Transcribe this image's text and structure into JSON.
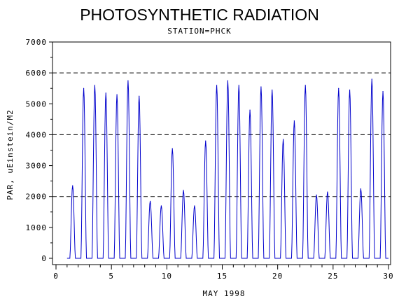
{
  "chart_data": {
    "type": "line",
    "title": "PHOTOSYNTHETIC RADIATION",
    "subtitle": "STATION=PHCK",
    "xlabel": "MAY 1998",
    "ylabel": "PAR, uEinstein/M2",
    "xlim": [
      0,
      30
    ],
    "ylim": [
      0,
      7000
    ],
    "x_ticks": [
      0,
      5,
      10,
      15,
      20,
      25,
      30
    ],
    "y_ticks": [
      0,
      1000,
      2000,
      3000,
      4000,
      5000,
      6000,
      7000
    ],
    "reference_lines": [
      2000,
      4000,
      6000
    ],
    "line_color": "#0000cc",
    "daily_peaks": [
      {
        "day": 1.5,
        "peak": 2350
      },
      {
        "day": 2.5,
        "peak": 5500
      },
      {
        "day": 3.5,
        "peak": 5600
      },
      {
        "day": 4.5,
        "peak": 5350
      },
      {
        "day": 5.5,
        "peak": 5300
      },
      {
        "day": 6.5,
        "peak": 5750
      },
      {
        "day": 7.5,
        "peak": 5250
      },
      {
        "day": 8.5,
        "peak": 1850
      },
      {
        "day": 9.5,
        "peak": 1700
      },
      {
        "day": 10.5,
        "peak": 3550
      },
      {
        "day": 11.5,
        "peak": 2200
      },
      {
        "day": 12.5,
        "peak": 1700
      },
      {
        "day": 13.5,
        "peak": 3800
      },
      {
        "day": 14.5,
        "peak": 5600
      },
      {
        "day": 15.5,
        "peak": 5750
      },
      {
        "day": 16.5,
        "peak": 5600
      },
      {
        "day": 17.5,
        "peak": 4800
      },
      {
        "day": 18.5,
        "peak": 5550
      },
      {
        "day": 19.5,
        "peak": 5450
      },
      {
        "day": 20.5,
        "peak": 3850
      },
      {
        "day": 21.5,
        "peak": 4450
      },
      {
        "day": 22.5,
        "peak": 5600
      },
      {
        "day": 23.5,
        "peak": 2050
      },
      {
        "day": 24.5,
        "peak": 2150
      },
      {
        "day": 25.5,
        "peak": 5500
      },
      {
        "day": 26.5,
        "peak": 5450
      },
      {
        "day": 27.5,
        "peak": 2250
      },
      {
        "day": 28.5,
        "peak": 5800
      },
      {
        "day": 29.5,
        "peak": 5400
      }
    ]
  }
}
